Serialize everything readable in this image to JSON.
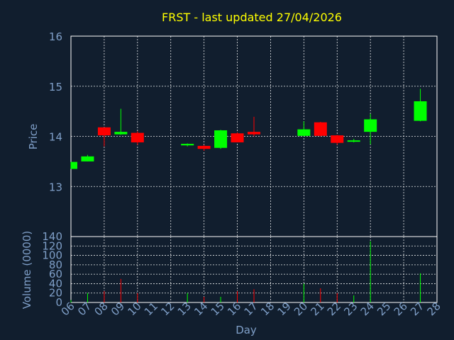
{
  "chart_data": [
    {
      "type": "candlestick",
      "title": "FRST - last updated 27/04/2026",
      "ylabel": "Price",
      "ylim": [
        12.0,
        16.0
      ],
      "yticks": [
        13,
        14,
        15,
        16
      ],
      "grid": true,
      "up_color": "#00ff00",
      "down_color": "#ff0000",
      "x": [
        "06",
        "07",
        "08",
        "09",
        "10",
        "13",
        "14",
        "15",
        "16",
        "17",
        "20",
        "21",
        "22",
        "23",
        "24",
        "27"
      ],
      "open": [
        13.35,
        13.5,
        14.18,
        14.04,
        14.07,
        13.82,
        13.81,
        13.77,
        14.06,
        14.09,
        14.01,
        14.28,
        14.02,
        13.9,
        14.09,
        14.31
      ],
      "close": [
        13.49,
        13.6,
        14.02,
        14.09,
        13.88,
        13.85,
        13.75,
        14.12,
        13.88,
        14.04,
        14.14,
        14.01,
        13.87,
        13.92,
        14.34,
        14.7
      ],
      "high": [
        13.49,
        13.63,
        14.18,
        14.55,
        14.1,
        13.86,
        13.83,
        14.13,
        14.08,
        14.39,
        14.3,
        14.29,
        14.03,
        13.95,
        14.45,
        14.95
      ],
      "low": [
        13.35,
        13.5,
        13.8,
        14.03,
        13.83,
        13.8,
        13.71,
        13.75,
        13.88,
        14.0,
        14.0,
        14.0,
        13.83,
        13.88,
        13.84,
        14.3
      ]
    },
    {
      "type": "bar",
      "ylabel": "Volume (0000)",
      "xlabel": "Day",
      "ylim": [
        0,
        140
      ],
      "yticks": [
        0,
        20,
        40,
        60,
        80,
        100,
        120,
        140
      ],
      "grid": true,
      "x": [
        "06",
        "07",
        "08",
        "09",
        "10",
        "13",
        "14",
        "15",
        "16",
        "17",
        "20",
        "21",
        "22",
        "23",
        "24",
        "27"
      ],
      "values": [
        5,
        20,
        24,
        50,
        20,
        20,
        12,
        12,
        24,
        28,
        40,
        30,
        20,
        15,
        130,
        62
      ],
      "colors": [
        "#00ff00",
        "#00ff00",
        "#ff0000",
        "#ff0000",
        "#ff0000",
        "#00ff00",
        "#ff0000",
        "#00ff00",
        "#ff0000",
        "#ff0000",
        "#00ff00",
        "#ff0000",
        "#ff0000",
        "#00ff00",
        "#00ff00",
        "#00ff00"
      ]
    }
  ],
  "day_axis": {
    "labels": [
      "06",
      "07",
      "08",
      "09",
      "10",
      "11",
      "12",
      "13",
      "14",
      "15",
      "16",
      "17",
      "18",
      "19",
      "20",
      "21",
      "22",
      "23",
      "24",
      "25",
      "26",
      "27",
      "28"
    ],
    "start": "06",
    "end": "28"
  }
}
